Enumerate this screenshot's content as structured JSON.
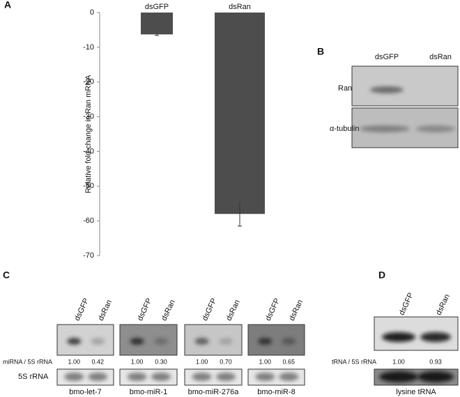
{
  "chart_data": {
    "type": "bar",
    "categories": [
      "dsGFP",
      "dsRan"
    ],
    "values": [
      -6.3,
      -58
    ],
    "errors": [
      0.3,
      3.5
    ],
    "color": "#4d4d4d",
    "ylim": [
      -70,
      0
    ],
    "yticks": [
      0,
      -10,
      -20,
      -30,
      -40,
      -50,
      -60,
      -70
    ],
    "y_label": "Relative fold change in Ran mRNA"
  },
  "panels": {
    "a": "A",
    "b": "B",
    "c": "C",
    "d": "D"
  },
  "blot_b": {
    "lanes": [
      "dsGFP",
      "dsRan"
    ],
    "rows": [
      "Ran",
      "α-tubulin"
    ]
  },
  "blot_c": {
    "ratio_label": "miRNA / 5S rRNA",
    "loading_label": "5S rRNA",
    "groups": [
      {
        "name": "bmo-let-7",
        "lanes": [
          "dsGFP",
          "dsRan"
        ],
        "ratios": [
          "1.00",
          "0.42"
        ]
      },
      {
        "name": "bmo-miR-1",
        "lanes": [
          "dsGFP",
          "dsRan"
        ],
        "ratios": [
          "1.00",
          "0.30"
        ]
      },
      {
        "name": "bmo-miR-276a",
        "lanes": [
          "dsGFP",
          "dsRan"
        ],
        "ratios": [
          "1.00",
          "0.70"
        ]
      },
      {
        "name": "bmo-miR-8",
        "lanes": [
          "dsGFP",
          "dsRan"
        ],
        "ratios": [
          "1.00",
          "0.65"
        ]
      }
    ]
  },
  "blot_d": {
    "name": "lysine tRNA",
    "lanes": [
      "dsGFP",
      "dsRan"
    ],
    "ratio_label": "tRNA / 5S rRNA",
    "ratios": [
      "1.00",
      "0.93"
    ]
  }
}
